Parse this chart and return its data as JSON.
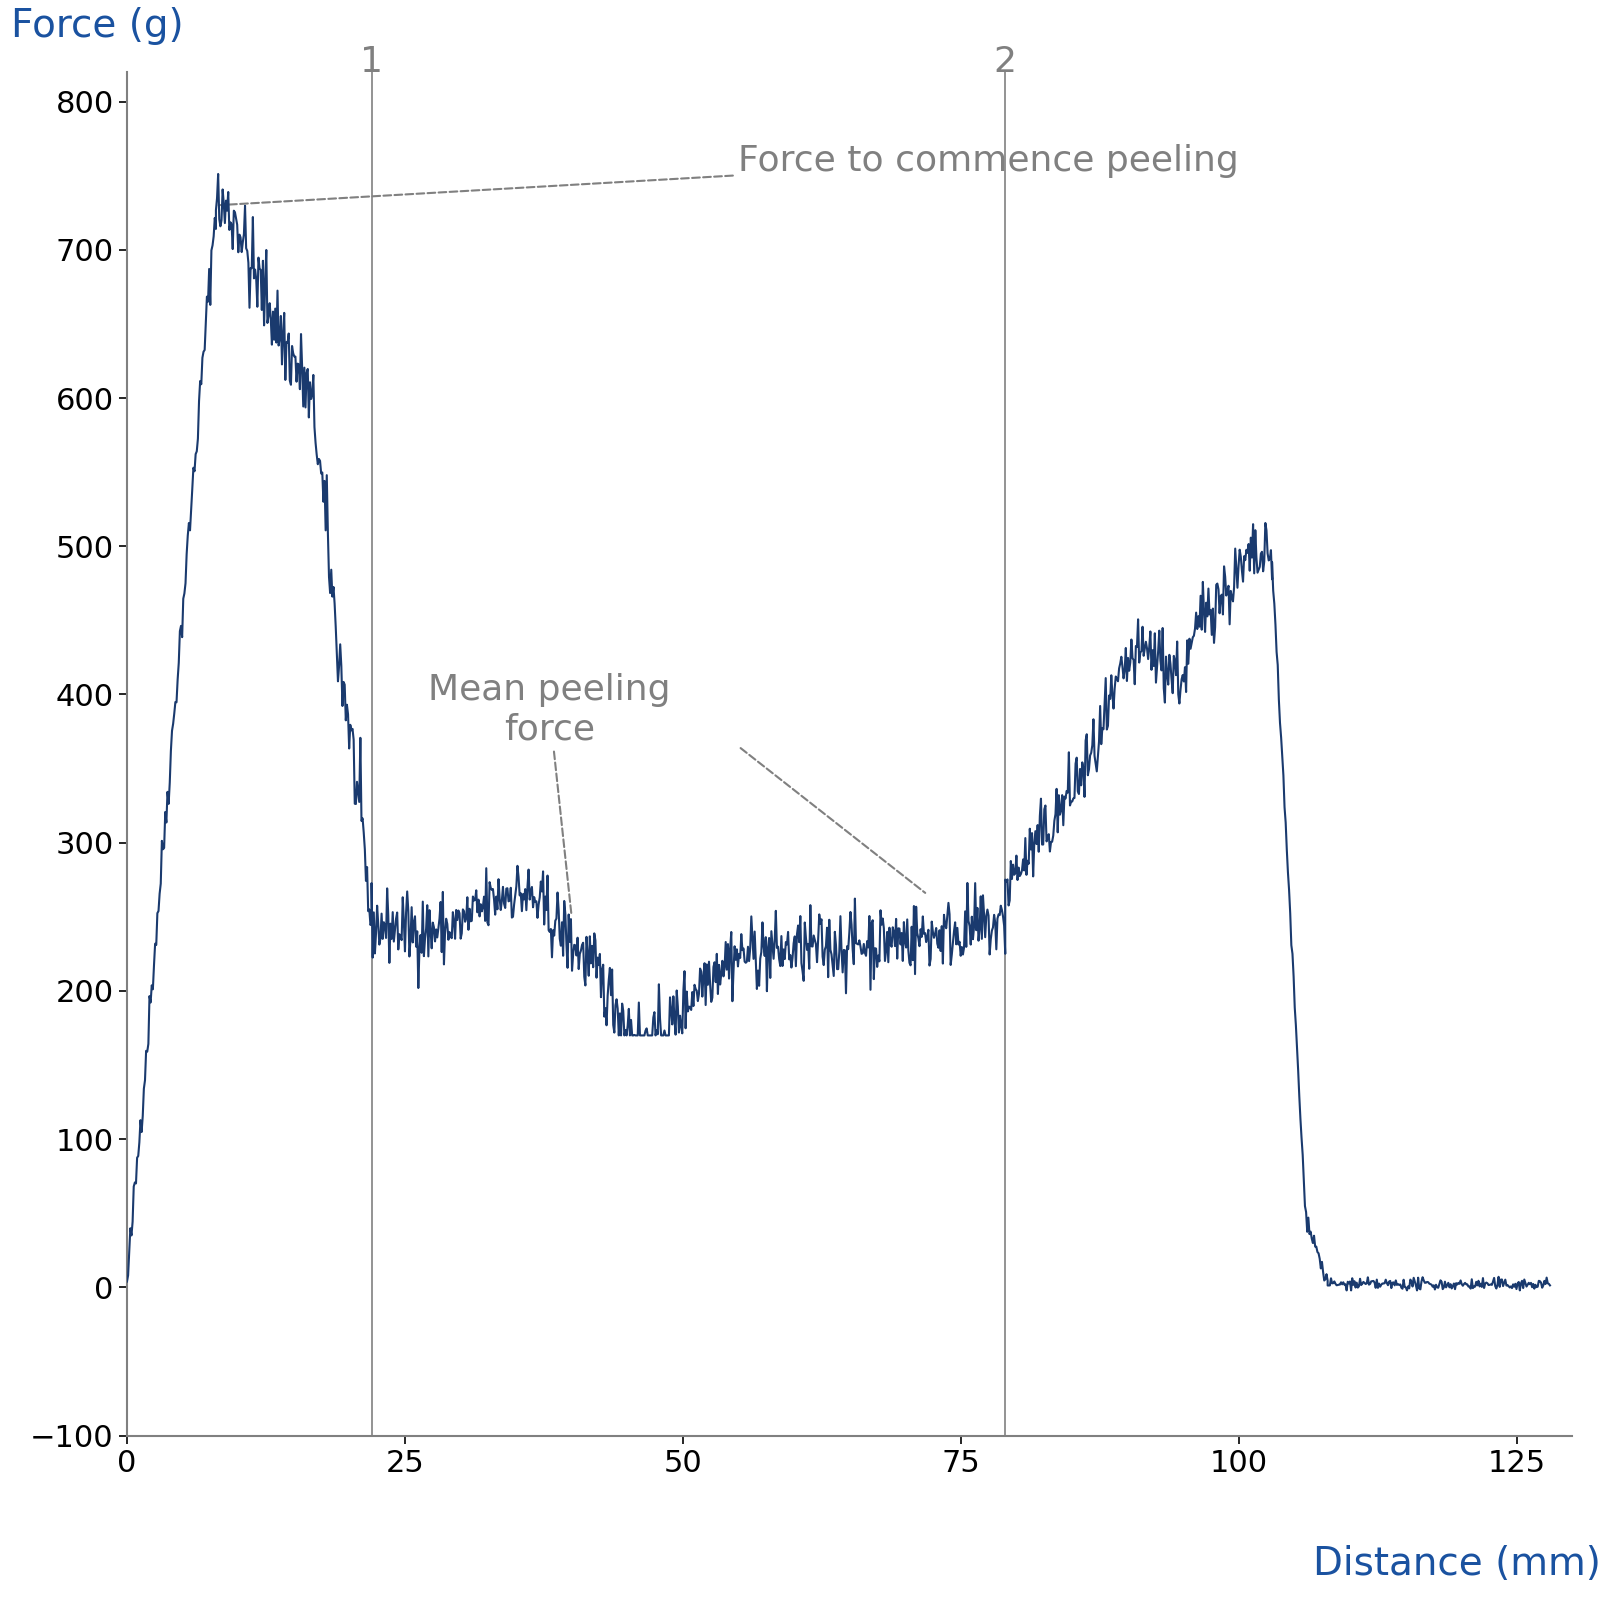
{
  "title": "",
  "xlabel": "Distance (mm)",
  "ylabel": "Force (g)",
  "xlabel_color": "#1a52a0",
  "ylabel_color": "#1a52a0",
  "xlabel_fontsize": 28,
  "ylabel_fontsize": 28,
  "tick_fontsize": 22,
  "xlim": [
    0,
    130
  ],
  "ylim": [
    -100,
    820
  ],
  "xticks": [
    0,
    25,
    50,
    75,
    100,
    125
  ],
  "yticks": [
    -100,
    0,
    100,
    200,
    300,
    400,
    500,
    600,
    700,
    800
  ],
  "line_color": "#1a3a6e",
  "line_width": 1.5,
  "vline1_x": 22,
  "vline2_x": 79,
  "vline_color": "#808080",
  "vline_label1": "1",
  "vline_label2": "2",
  "annotation1_text": "Force to commence peeling",
  "annotation2_text": "Mean peeling\nforce",
  "annotation_color": "#808080",
  "annotation_fontsize": 26,
  "background_color": "#ffffff",
  "ax_color": "#808080"
}
